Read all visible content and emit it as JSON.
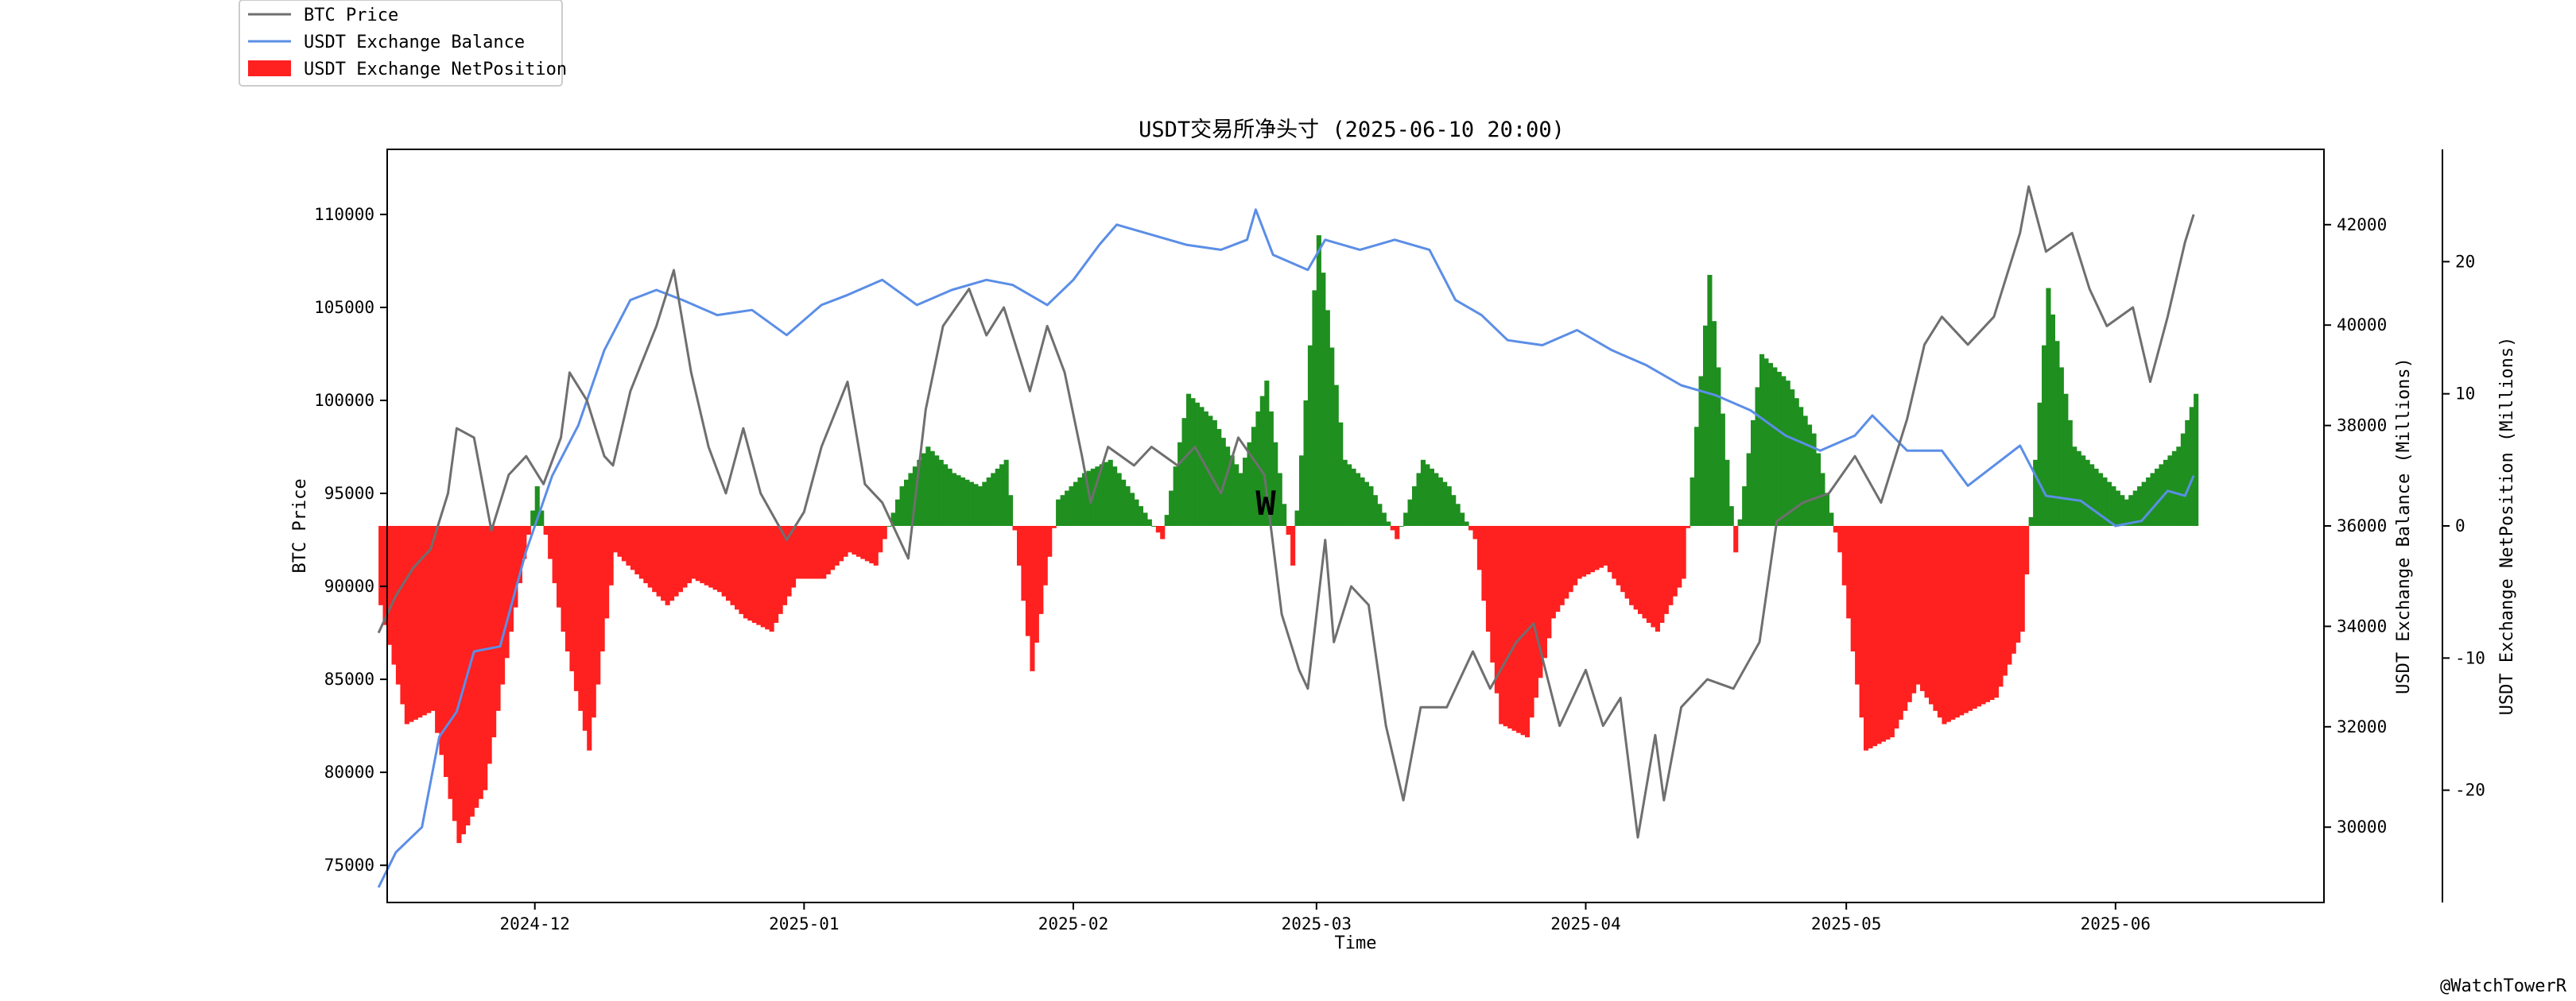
{
  "chart_data": {
    "type": "line",
    "title": "USDT交易所净头寸 (2025-06-10 20:00)",
    "xlabel": "Time",
    "ylabel_left": "BTC Price",
    "ylabel_right1": "USDT Exchange Balance (Millions)",
    "ylabel_right2": "USDT Exchange NetPosition (Millions)",
    "x_range": [
      "2024-11-14",
      "2025-06-25"
    ],
    "x_ticks": [
      "2024-12",
      "2025-01",
      "2025-02",
      "2025-03",
      "2025-04",
      "2025-05",
      "2025-06"
    ],
    "y_left_range": [
      73000,
      113500
    ],
    "y_left_ticks": [
      75000,
      80000,
      85000,
      90000,
      95000,
      100000,
      105000,
      110000
    ],
    "y_right1_range": [
      28500,
      43500
    ],
    "y_right1_ticks": [
      30000,
      32000,
      34000,
      36000,
      38000,
      40000,
      42000
    ],
    "y_right2_range": [
      -28.5,
      28.5
    ],
    "y_right2_ticks": [
      -20,
      -10,
      0,
      10,
      20
    ],
    "legend": {
      "placement": "top-left outside",
      "entries": [
        "BTC Price",
        "USDT Exchange Balance",
        "USDT Exchange NetPosition"
      ]
    },
    "colors": {
      "btc": "#6f6f6f",
      "balance": "#5b8ee6",
      "net_positive": "#1f8f1f",
      "net_negative": "#ff2020"
    },
    "series": [
      {
        "name": "BTC Price",
        "axis": "left",
        "x": [
          "2024-11-13",
          "2024-11-15",
          "2024-11-17",
          "2024-11-19",
          "2024-11-21",
          "2024-11-22",
          "2024-11-24",
          "2024-11-26",
          "2024-11-28",
          "2024-11-30",
          "2024-12-02",
          "2024-12-04",
          "2024-12-05",
          "2024-12-07",
          "2024-12-09",
          "2024-12-10",
          "2024-12-12",
          "2024-12-15",
          "2024-12-17",
          "2024-12-19",
          "2024-12-21",
          "2024-12-23",
          "2024-12-25",
          "2024-12-27",
          "2024-12-30",
          "2025-01-01",
          "2025-01-03",
          "2025-01-06",
          "2025-01-08",
          "2025-01-10",
          "2025-01-13",
          "2025-01-15",
          "2025-01-17",
          "2025-01-20",
          "2025-01-22",
          "2025-01-24",
          "2025-01-27",
          "2025-01-29",
          "2025-01-31",
          "2025-02-02",
          "2025-02-03",
          "2025-02-05",
          "2025-02-08",
          "2025-02-10",
          "2025-02-13",
          "2025-02-15",
          "2025-02-18",
          "2025-02-20",
          "2025-02-23",
          "2025-02-25",
          "2025-02-27",
          "2025-02-28",
          "2025-03-02",
          "2025-03-03",
          "2025-03-05",
          "2025-03-07",
          "2025-03-09",
          "2025-03-11",
          "2025-03-13",
          "2025-03-16",
          "2025-03-19",
          "2025-03-21",
          "2025-03-24",
          "2025-03-26",
          "2025-03-29",
          "2025-04-01",
          "2025-04-03",
          "2025-04-05",
          "2025-04-07",
          "2025-04-09",
          "2025-04-10",
          "2025-04-12",
          "2025-04-15",
          "2025-04-18",
          "2025-04-21",
          "2025-04-23",
          "2025-04-26",
          "2025-04-29",
          "2025-05-02",
          "2025-05-05",
          "2025-05-08",
          "2025-05-10",
          "2025-05-12",
          "2025-05-15",
          "2025-05-18",
          "2025-05-21",
          "2025-05-22",
          "2025-05-24",
          "2025-05-27",
          "2025-05-29",
          "2025-05-31",
          "2025-06-03",
          "2025-06-05",
          "2025-06-07",
          "2025-06-09",
          "2025-06-10"
        ],
        "values": [
          87500,
          89500,
          91000,
          92000,
          95000,
          98500,
          98000,
          93000,
          96000,
          97000,
          95500,
          98000,
          101500,
          100000,
          97000,
          96500,
          100500,
          104000,
          107000,
          101500,
          97500,
          95000,
          98500,
          95000,
          92500,
          94000,
          97500,
          101000,
          95500,
          94500,
          91500,
          99500,
          104000,
          106000,
          103500,
          105000,
          100500,
          104000,
          101500,
          97000,
          94500,
          97500,
          96500,
          97500,
          96500,
          97500,
          95000,
          98000,
          96000,
          88500,
          85500,
          84500,
          92500,
          87000,
          90000,
          89000,
          82500,
          78500,
          83500,
          83500,
          86500,
          84500,
          87000,
          88000,
          82500,
          85500,
          82500,
          84000,
          76500,
          82000,
          78500,
          83500,
          85000,
          84500,
          87000,
          93500,
          94500,
          95000,
          97000,
          94500,
          99000,
          103000,
          104500,
          103000,
          104500,
          109000,
          111500,
          108000,
          109000,
          106000,
          104000,
          105000,
          101000,
          104500,
          108500,
          110000
        ]
      },
      {
        "name": "USDT Exchange Balance",
        "axis": "right1",
        "x": [
          "2024-11-13",
          "2024-11-15",
          "2024-11-18",
          "2024-11-20",
          "2024-11-22",
          "2024-11-24",
          "2024-11-27",
          "2024-11-30",
          "2024-12-03",
          "2024-12-06",
          "2024-12-09",
          "2024-12-12",
          "2024-12-15",
          "2024-12-18",
          "2024-12-22",
          "2024-12-26",
          "2024-12-30",
          "2025-01-03",
          "2025-01-06",
          "2025-01-10",
          "2025-01-14",
          "2025-01-18",
          "2025-01-22",
          "2025-01-25",
          "2025-01-29",
          "2025-02-01",
          "2025-02-04",
          "2025-02-06",
          "2025-02-10",
          "2025-02-14",
          "2025-02-18",
          "2025-02-21",
          "2025-02-22",
          "2025-02-24",
          "2025-02-28",
          "2025-03-02",
          "2025-03-06",
          "2025-03-10",
          "2025-03-14",
          "2025-03-17",
          "2025-03-20",
          "2025-03-23",
          "2025-03-27",
          "2025-03-31",
          "2025-04-04",
          "2025-04-08",
          "2025-04-12",
          "2025-04-16",
          "2025-04-20",
          "2025-04-24",
          "2025-04-28",
          "2025-05-02",
          "2025-05-04",
          "2025-05-08",
          "2025-05-12",
          "2025-05-15",
          "2025-05-18",
          "2025-05-21",
          "2025-05-24",
          "2025-05-28",
          "2025-06-01",
          "2025-06-04",
          "2025-06-07",
          "2025-06-09",
          "2025-06-10"
        ],
        "values": [
          28800,
          29500,
          30000,
          31800,
          32300,
          33500,
          33600,
          35500,
          37000,
          38000,
          39500,
          40500,
          40700,
          40500,
          40200,
          40300,
          39800,
          40400,
          40600,
          40900,
          40400,
          40700,
          40900,
          40800,
          40400,
          40900,
          41600,
          42000,
          41800,
          41600,
          41500,
          41700,
          42300,
          41400,
          41100,
          41700,
          41500,
          41700,
          41500,
          40500,
          40200,
          39700,
          39600,
          39900,
          39500,
          39200,
          38800,
          38600,
          38300,
          37800,
          37500,
          37800,
          38200,
          37500,
          37500,
          36800,
          37200,
          37600,
          36600,
          36500,
          36000,
          36100,
          36700,
          36600,
          37000
        ]
      },
      {
        "name": "USDT Exchange NetPosition",
        "axis": "right2",
        "type": "bar",
        "x": [
          "2024-11-13",
          "2024-11-16",
          "2024-11-19",
          "2024-11-22",
          "2024-11-25",
          "2024-11-28",
          "2024-12-01",
          "2024-12-04",
          "2024-12-07",
          "2024-12-10",
          "2024-12-13",
          "2024-12-16",
          "2024-12-19",
          "2024-12-22",
          "2024-12-25",
          "2024-12-28",
          "2024-12-31",
          "2025-01-03",
          "2025-01-06",
          "2025-01-09",
          "2025-01-12",
          "2025-01-15",
          "2025-01-18",
          "2025-01-21",
          "2025-01-24",
          "2025-01-27",
          "2025-01-30",
          "2025-02-02",
          "2025-02-05",
          "2025-02-08",
          "2025-02-11",
          "2025-02-14",
          "2025-02-17",
          "2025-02-20",
          "2025-02-23",
          "2025-02-26",
          "2025-03-01",
          "2025-03-04",
          "2025-03-07",
          "2025-03-10",
          "2025-03-13",
          "2025-03-16",
          "2025-03-19",
          "2025-03-22",
          "2025-03-25",
          "2025-03-28",
          "2025-03-31",
          "2025-04-03",
          "2025-04-06",
          "2025-04-09",
          "2025-04-12",
          "2025-04-15",
          "2025-04-18",
          "2025-04-21",
          "2025-04-24",
          "2025-04-27",
          "2025-04-30",
          "2025-05-03",
          "2025-05-06",
          "2025-05-09",
          "2025-05-12",
          "2025-05-15",
          "2025-05-18",
          "2025-05-21",
          "2025-05-24",
          "2025-05-27",
          "2025-05-30",
          "2025-06-02",
          "2025-06-05",
          "2025-06-08",
          "2025-06-10"
        ],
        "values": [
          -6,
          -15,
          -14,
          -24,
          -20,
          -8,
          3,
          -8,
          -17,
          -2,
          -4,
          -6,
          -4,
          -5,
          -7,
          -8,
          -4,
          -4,
          -2,
          -3,
          3,
          6,
          4,
          3,
          5,
          -11,
          2,
          4,
          5,
          2,
          -1,
          10,
          8,
          4,
          11,
          -3,
          22,
          5,
          3,
          -1,
          5,
          3,
          -1,
          -15,
          -16,
          -7,
          -4,
          -3,
          -6,
          -8,
          -4,
          19,
          -2,
          13,
          11,
          7,
          -2,
          -17,
          -16,
          -12,
          -15,
          -14,
          -13,
          -8,
          18,
          6,
          4,
          2,
          4,
          6,
          10
        ]
      }
    ],
    "watermark_center": "W",
    "watermark_corner": "@WatchTowerR"
  }
}
